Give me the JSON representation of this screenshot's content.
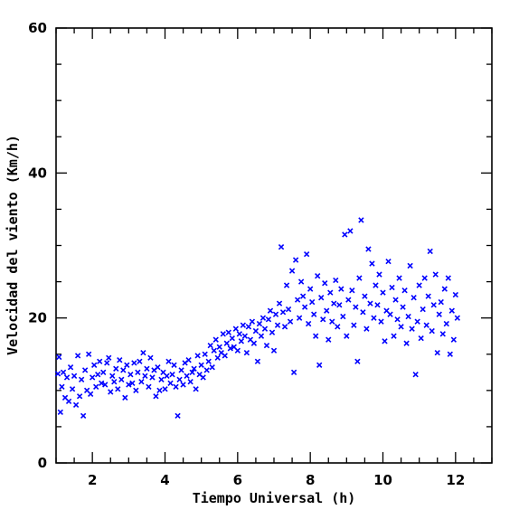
{
  "chart_data": {
    "type": "scatter",
    "title": "",
    "xlabel": "Tiempo Universal (h)",
    "ylabel": "Velocidad del viento (Km/h)",
    "xlim": [
      1,
      13
    ],
    "ylim": [
      0,
      60
    ],
    "x_ticks": [
      2,
      4,
      6,
      8,
      10,
      12
    ],
    "y_ticks": [
      0,
      20,
      40,
      60
    ],
    "marker": "x",
    "grid": false,
    "colors": {
      "points": "#0000ff",
      "axes": "#000000"
    },
    "series": [
      {
        "points": [
          [
            1.05,
            12.3
          ],
          [
            1.08,
            14.6
          ],
          [
            1.12,
            7.0
          ],
          [
            1.16,
            10.5
          ],
          [
            1.2,
            12.5
          ],
          [
            1.25,
            9.0
          ],
          [
            1.3,
            11.8
          ],
          [
            1.35,
            8.5
          ],
          [
            1.4,
            13.2
          ],
          [
            1.45,
            10.2
          ],
          [
            1.5,
            12.0
          ],
          [
            1.55,
            8.0
          ],
          [
            1.6,
            14.8
          ],
          [
            1.65,
            9.2
          ],
          [
            1.7,
            11.5
          ],
          [
            1.75,
            6.5
          ],
          [
            1.8,
            12.8
          ],
          [
            1.85,
            10.0
          ],
          [
            1.9,
            15.0
          ],
          [
            1.95,
            9.5
          ],
          [
            2.0,
            11.8
          ],
          [
            2.05,
            13.5
          ],
          [
            2.1,
            10.5
          ],
          [
            2.15,
            12.2
          ],
          [
            2.2,
            14.0
          ],
          [
            2.25,
            11.0
          ],
          [
            2.3,
            12.5
          ],
          [
            2.35,
            10.8
          ],
          [
            2.4,
            13.8
          ],
          [
            2.45,
            14.5
          ],
          [
            2.5,
            9.8
          ],
          [
            2.55,
            12.0
          ],
          [
            2.6,
            11.2
          ],
          [
            2.65,
            13.0
          ],
          [
            2.7,
            10.2
          ],
          [
            2.75,
            14.2
          ],
          [
            2.8,
            11.5
          ],
          [
            2.85,
            12.8
          ],
          [
            2.9,
            9.0
          ],
          [
            2.95,
            13.5
          ],
          [
            3.0,
            10.8
          ],
          [
            3.05,
            12.2
          ],
          [
            3.1,
            11.0
          ],
          [
            3.15,
            13.8
          ],
          [
            3.2,
            10.0
          ],
          [
            3.25,
            12.5
          ],
          [
            3.3,
            14.0
          ],
          [
            3.35,
            11.2
          ],
          [
            3.4,
            15.2
          ],
          [
            3.45,
            12.0
          ],
          [
            3.5,
            13.0
          ],
          [
            3.55,
            10.5
          ],
          [
            3.6,
            14.5
          ],
          [
            3.65,
            11.8
          ],
          [
            3.7,
            12.8
          ],
          [
            3.75,
            9.2
          ],
          [
            3.8,
            13.2
          ],
          [
            3.85,
            10.0
          ],
          [
            3.9,
            11.5
          ],
          [
            3.95,
            12.5
          ],
          [
            4.0,
            10.2
          ],
          [
            4.05,
            12.0
          ],
          [
            4.1,
            14.0
          ],
          [
            4.15,
            11.0
          ],
          [
            4.2,
            12.2
          ],
          [
            4.25,
            13.5
          ],
          [
            4.3,
            10.5
          ],
          [
            4.35,
            6.5
          ],
          [
            4.4,
            11.5
          ],
          [
            4.45,
            12.8
          ],
          [
            4.5,
            10.8
          ],
          [
            4.55,
            13.8
          ],
          [
            4.6,
            12.0
          ],
          [
            4.65,
            14.2
          ],
          [
            4.7,
            11.2
          ],
          [
            4.75,
            12.5
          ],
          [
            4.8,
            13.0
          ],
          [
            4.85,
            10.2
          ],
          [
            4.9,
            14.8
          ],
          [
            4.95,
            12.2
          ],
          [
            5.0,
            13.5
          ],
          [
            5.05,
            11.8
          ],
          [
            5.1,
            15.0
          ],
          [
            5.15,
            12.8
          ],
          [
            5.2,
            14.0
          ],
          [
            5.25,
            16.2
          ],
          [
            5.3,
            13.2
          ],
          [
            5.35,
            15.5
          ],
          [
            5.4,
            17.0
          ],
          [
            5.45,
            14.5
          ],
          [
            5.5,
            16.0
          ],
          [
            5.55,
            15.2
          ],
          [
            5.6,
            17.8
          ],
          [
            5.65,
            14.8
          ],
          [
            5.7,
            16.5
          ],
          [
            5.75,
            18.0
          ],
          [
            5.8,
            15.8
          ],
          [
            5.85,
            17.2
          ],
          [
            5.9,
            16.0
          ],
          [
            5.95,
            18.5
          ],
          [
            6.0,
            15.5
          ],
          [
            6.05,
            17.8
          ],
          [
            6.1,
            16.8
          ],
          [
            6.15,
            19.0
          ],
          [
            6.2,
            17.5
          ],
          [
            6.25,
            15.2
          ],
          [
            6.3,
            18.8
          ],
          [
            6.35,
            17.0
          ],
          [
            6.4,
            19.5
          ],
          [
            6.45,
            16.5
          ],
          [
            6.5,
            18.2
          ],
          [
            6.55,
            14.0
          ],
          [
            6.6,
            19.2
          ],
          [
            6.65,
            17.5
          ],
          [
            6.7,
            20.0
          ],
          [
            6.75,
            18.5
          ],
          [
            6.8,
            16.2
          ],
          [
            6.85,
            19.8
          ],
          [
            6.9,
            21.0
          ],
          [
            6.95,
            18.0
          ],
          [
            7.0,
            15.5
          ],
          [
            7.05,
            20.5
          ],
          [
            7.1,
            19.0
          ],
          [
            7.15,
            22.0
          ],
          [
            7.2,
            29.8
          ],
          [
            7.25,
            20.8
          ],
          [
            7.3,
            18.8
          ],
          [
            7.35,
            24.5
          ],
          [
            7.4,
            21.2
          ],
          [
            7.45,
            19.5
          ],
          [
            7.5,
            26.5
          ],
          [
            7.55,
            12.5
          ],
          [
            7.6,
            28.0
          ],
          [
            7.65,
            22.5
          ],
          [
            7.7,
            20.0
          ],
          [
            7.75,
            25.0
          ],
          [
            7.8,
            23.0
          ],
          [
            7.85,
            21.5
          ],
          [
            7.9,
            28.8
          ],
          [
            7.95,
            19.2
          ],
          [
            8.0,
            24.0
          ],
          [
            8.05,
            22.2
          ],
          [
            8.1,
            20.5
          ],
          [
            8.15,
            17.5
          ],
          [
            8.2,
            25.8
          ],
          [
            8.25,
            13.5
          ],
          [
            8.3,
            22.8
          ],
          [
            8.35,
            19.8
          ],
          [
            8.4,
            24.8
          ],
          [
            8.45,
            21.0
          ],
          [
            8.5,
            17.0
          ],
          [
            8.55,
            23.5
          ],
          [
            8.6,
            19.5
          ],
          [
            8.65,
            22.0
          ],
          [
            8.7,
            25.2
          ],
          [
            8.75,
            18.8
          ],
          [
            8.8,
            21.8
          ],
          [
            8.85,
            24.0
          ],
          [
            8.9,
            20.2
          ],
          [
            8.95,
            31.5
          ],
          [
            9.0,
            17.5
          ],
          [
            9.05,
            22.5
          ],
          [
            9.1,
            32.0
          ],
          [
            9.15,
            23.8
          ],
          [
            9.2,
            19.0
          ],
          [
            9.25,
            21.5
          ],
          [
            9.3,
            14.0
          ],
          [
            9.35,
            25.5
          ],
          [
            9.4,
            33.5
          ],
          [
            9.45,
            20.8
          ],
          [
            9.5,
            23.0
          ],
          [
            9.55,
            18.5
          ],
          [
            9.6,
            29.5
          ],
          [
            9.65,
            22.0
          ],
          [
            9.7,
            27.5
          ],
          [
            9.75,
            20.0
          ],
          [
            9.8,
            24.5
          ],
          [
            9.85,
            21.8
          ],
          [
            9.9,
            26.0
          ],
          [
            9.95,
            19.5
          ],
          [
            10.0,
            23.5
          ],
          [
            10.05,
            16.8
          ],
          [
            10.1,
            21.0
          ],
          [
            10.15,
            27.8
          ],
          [
            10.2,
            20.5
          ],
          [
            10.25,
            24.2
          ],
          [
            10.3,
            17.5
          ],
          [
            10.35,
            22.5
          ],
          [
            10.4,
            19.8
          ],
          [
            10.45,
            25.5
          ],
          [
            10.5,
            18.8
          ],
          [
            10.55,
            21.5
          ],
          [
            10.6,
            23.8
          ],
          [
            10.65,
            16.5
          ],
          [
            10.7,
            20.2
          ],
          [
            10.75,
            27.2
          ],
          [
            10.8,
            18.5
          ],
          [
            10.85,
            22.8
          ],
          [
            10.9,
            12.2
          ],
          [
            10.95,
            19.5
          ],
          [
            11.0,
            24.5
          ],
          [
            11.05,
            17.2
          ],
          [
            11.1,
            21.2
          ],
          [
            11.15,
            25.5
          ],
          [
            11.2,
            19.0
          ],
          [
            11.25,
            23.0
          ],
          [
            11.3,
            29.2
          ],
          [
            11.35,
            18.2
          ],
          [
            11.4,
            21.8
          ],
          [
            11.45,
            26.0
          ],
          [
            11.5,
            15.2
          ],
          [
            11.55,
            20.5
          ],
          [
            11.6,
            22.2
          ],
          [
            11.65,
            17.8
          ],
          [
            11.7,
            24.0
          ],
          [
            11.75,
            19.2
          ],
          [
            11.8,
            25.5
          ],
          [
            11.85,
            15.0
          ],
          [
            11.9,
            21.0
          ],
          [
            11.95,
            17.0
          ],
          [
            12.0,
            23.2
          ],
          [
            12.05,
            20.0
          ]
        ]
      }
    ]
  }
}
